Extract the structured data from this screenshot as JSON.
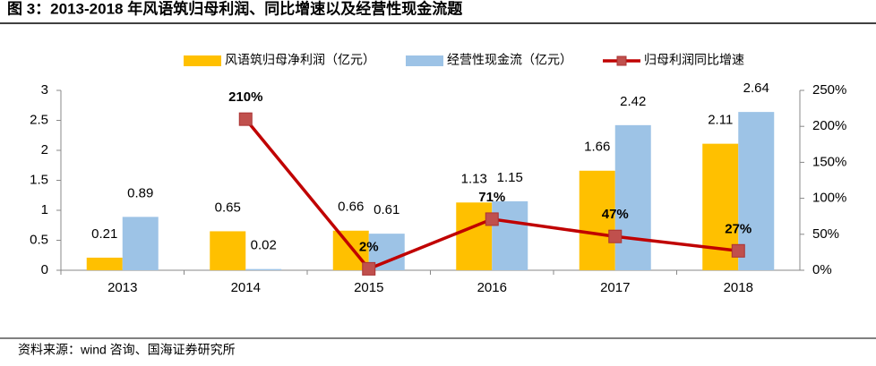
{
  "chart_data": {
    "type": "bar-line",
    "title": "图 3：2013-2018 年风语筑归母利润、同比增速以及经营性现金流题",
    "source": "资料来源：wind 咨询、国海证券研究所",
    "categories": [
      "2013",
      "2014",
      "2015",
      "2016",
      "2017",
      "2018"
    ],
    "series": [
      {
        "name": "风语筑归母净利润（亿元）",
        "type": "bar",
        "color": "#FFC000",
        "values": [
          0.21,
          0.65,
          0.66,
          1.13,
          1.66,
          2.11
        ]
      },
      {
        "name": "经营性现金流（亿元）",
        "type": "bar",
        "color": "#9DC3E6",
        "values": [
          0.89,
          0.02,
          0.61,
          1.15,
          2.42,
          2.64
        ]
      },
      {
        "name": "归母利润同比增速",
        "type": "line",
        "axis": "y2",
        "color": "#C00000",
        "marker_color": "#C0504D",
        "values": [
          null,
          210,
          2,
          71,
          47,
          27
        ],
        "value_labels": [
          null,
          "210%",
          "2%",
          "71%",
          "47%",
          "27%"
        ]
      }
    ],
    "ylim": [
      0,
      3
    ],
    "yticks": [
      0,
      0.5,
      1,
      1.5,
      2,
      2.5,
      3
    ],
    "y2lim": [
      0,
      250
    ],
    "y2ticks": [
      {
        "value": 0,
        "label": "0%"
      },
      {
        "value": 50,
        "label": "50%"
      },
      {
        "value": 100,
        "label": "100%"
      },
      {
        "value": 150,
        "label": "150%"
      },
      {
        "value": 200,
        "label": "200%"
      },
      {
        "value": 250,
        "label": "250%"
      }
    ],
    "legend": "top"
  }
}
